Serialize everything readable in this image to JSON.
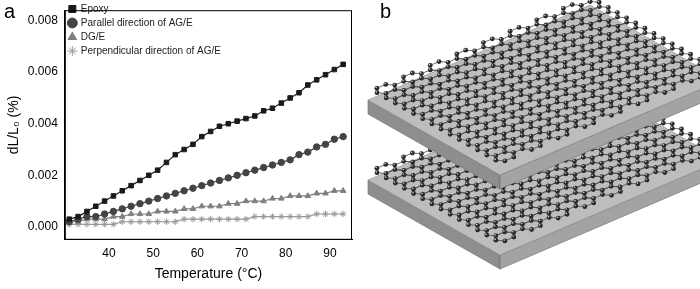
{
  "panel_labels": [
    "a",
    "b"
  ],
  "chart_data": {
    "type": "line",
    "x_label": "Temperature (°C)",
    "y_label": "dL/L₀ (%)",
    "x": [
      31,
      33,
      35,
      37,
      39,
      41,
      43,
      45,
      47,
      49,
      51,
      53,
      55,
      57,
      59,
      61,
      63,
      65,
      67,
      69,
      71,
      73,
      75,
      77,
      79,
      81,
      83,
      85,
      87,
      89,
      91,
      93
    ],
    "series": [
      {
        "name": "Epoxy",
        "color": "#1a1a1a",
        "marker": "square",
        "values": [
          0.0003,
          0.0004,
          0.0006,
          0.0008,
          0.001,
          0.0012,
          0.0014,
          0.0016,
          0.0018,
          0.002,
          0.0022,
          0.0025,
          0.0028,
          0.003,
          0.0032,
          0.0035,
          0.0037,
          0.0039,
          0.004,
          0.0041,
          0.0042,
          0.0043,
          0.0045,
          0.0046,
          0.0048,
          0.005,
          0.0052,
          0.0055,
          0.0057,
          0.0059,
          0.0061,
          0.0063
        ]
      },
      {
        "name": "Parallel direction of AG/E",
        "color": "#444444",
        "marker": "circle",
        "values": [
          0.0002,
          0.0003,
          0.0004,
          0.0004,
          0.0005,
          0.0006,
          0.0007,
          0.0008,
          0.0009,
          0.001,
          0.0011,
          0.0012,
          0.0013,
          0.0014,
          0.0015,
          0.0016,
          0.0017,
          0.0018,
          0.0019,
          0.002,
          0.0021,
          0.0022,
          0.0023,
          0.0024,
          0.0025,
          0.0026,
          0.0028,
          0.0029,
          0.0031,
          0.0032,
          0.0034,
          0.0035
        ]
      },
      {
        "name": "DG/E",
        "color": "#7f7f7f",
        "marker": "triangle",
        "values": [
          0.0002,
          0.0002,
          0.0003,
          0.0003,
          0.0003,
          0.0004,
          0.0004,
          0.0005,
          0.0005,
          0.0005,
          0.0006,
          0.0006,
          0.0006,
          0.0007,
          0.0007,
          0.0008,
          0.0008,
          0.0008,
          0.0009,
          0.0009,
          0.001,
          0.001,
          0.001,
          0.0011,
          0.0011,
          0.0012,
          0.0012,
          0.0012,
          0.0013,
          0.0013,
          0.0014,
          0.0014
        ]
      },
      {
        "name": "Perpendicular direction of AG/E",
        "color": "#999999",
        "marker": "star",
        "values": [
          0.0001,
          0.0001,
          0.0001,
          0.0001,
          0.0001,
          0.0001,
          0.0002,
          0.0002,
          0.0002,
          0.0002,
          0.0002,
          0.0002,
          0.0002,
          0.0003,
          0.0003,
          0.0003,
          0.0003,
          0.0003,
          0.0003,
          0.0003,
          0.0003,
          0.0004,
          0.0004,
          0.0004,
          0.0004,
          0.0004,
          0.0004,
          0.0004,
          0.0005,
          0.0005,
          0.0005,
          0.0005
        ]
      }
    ],
    "xlim": [
      30,
      95
    ],
    "xticks": [
      40,
      50,
      60,
      70,
      80,
      90
    ],
    "ylim": [
      -0.0005,
      0.0084
    ],
    "yticks": [
      {
        "value": 0,
        "label": "0.000"
      },
      {
        "value": 0.002,
        "label": "0.002"
      },
      {
        "value": 0.004,
        "label": "0.004"
      },
      {
        "value": 0.006,
        "label": "0.006"
      },
      {
        "value": 0.008,
        "label": "0.008"
      }
    ],
    "grid": false,
    "legend": "upper left",
    "line_style": "solid"
  }
}
